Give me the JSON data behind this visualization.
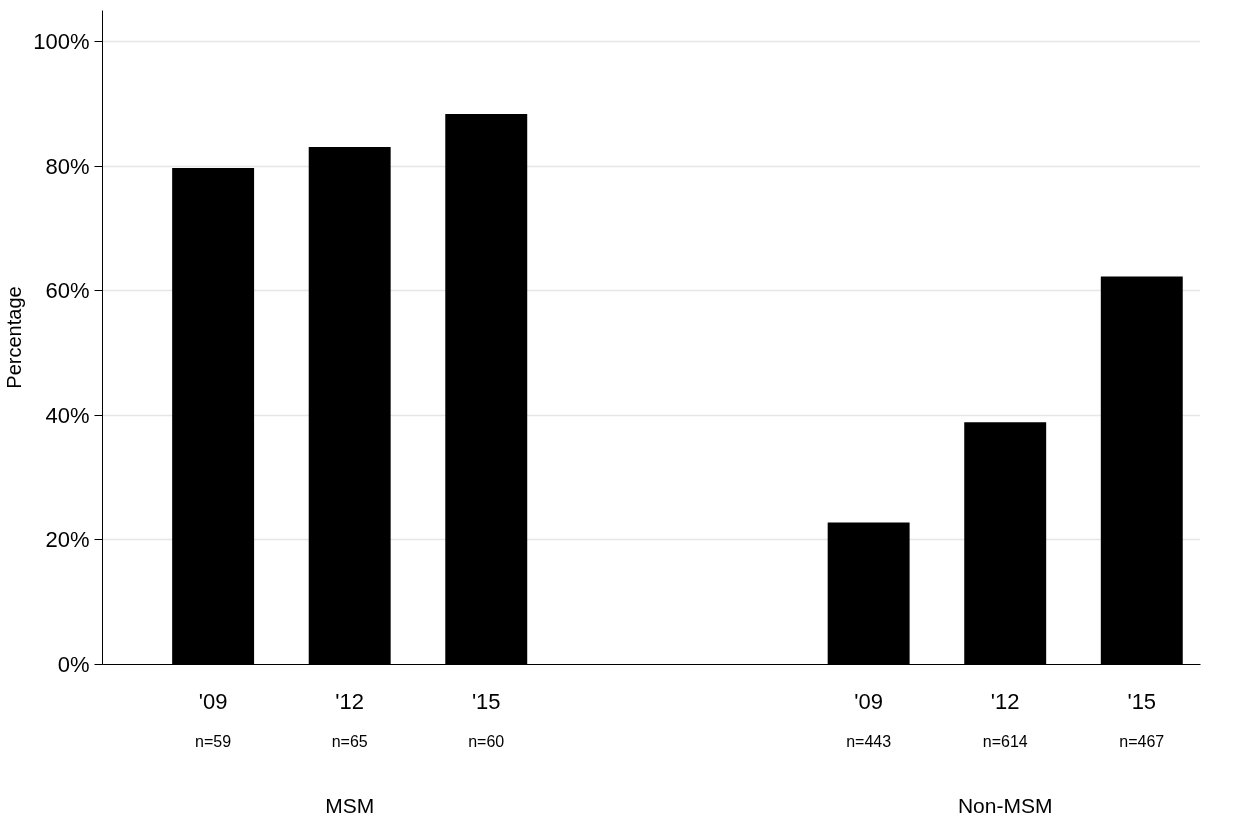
{
  "chart_data": {
    "type": "bar",
    "ylabel": "Percentage",
    "categories": [
      "'09",
      "'12",
      "'15",
      "'09",
      "'12",
      "'15"
    ],
    "values": [
      79.7,
      83.1,
      88.4,
      22.8,
      38.9,
      62.3
    ],
    "color": "#000000",
    "ylim": [
      0,
      105
    ],
    "yticks": [
      {
        "value": 0,
        "label": "0%"
      },
      {
        "value": 20,
        "label": "20%"
      },
      {
        "value": 40,
        "label": "40%"
      },
      {
        "value": 60,
        "label": "60%"
      },
      {
        "value": 80,
        "label": "80%"
      },
      {
        "value": 100,
        "label": "100%"
      }
    ],
    "grid": "y",
    "annotations": [
      "n=59",
      "n=65",
      "n=60",
      "n=443",
      "n=614",
      "n=467",
      "MSM",
      "Non-MSM"
    ]
  }
}
